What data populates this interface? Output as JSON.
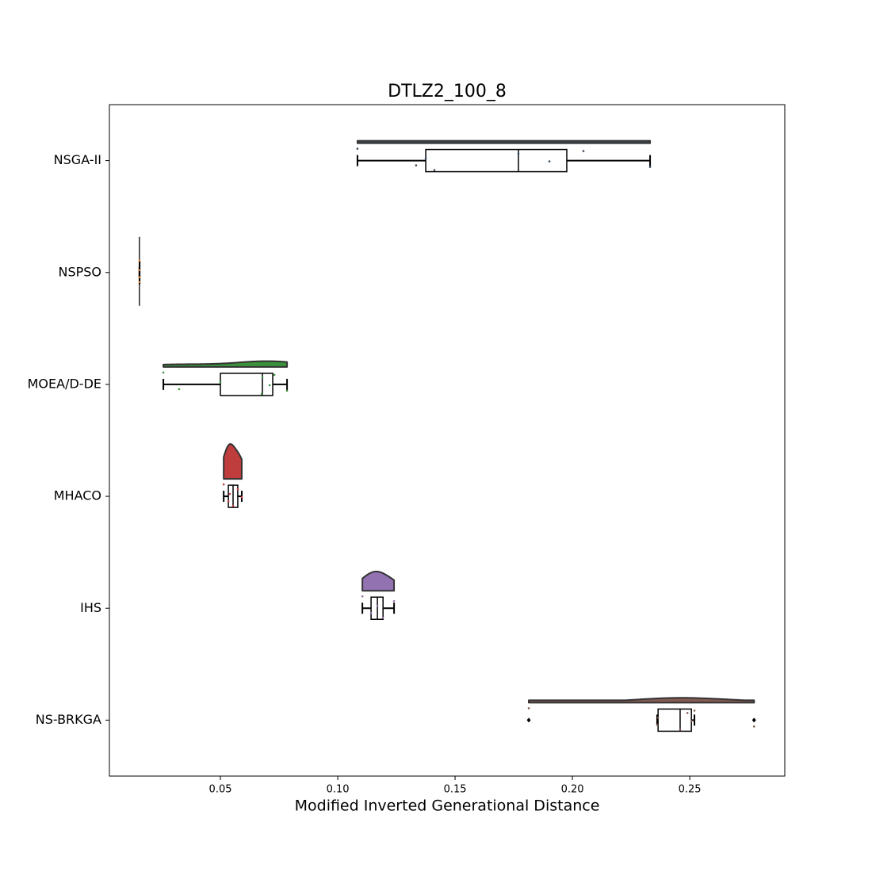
{
  "chart_data": {
    "type": "raincloud",
    "title": "DTLZ2_100_8",
    "xlabel": "Modified Inverted Generational Distance",
    "categories": [
      "NSGA-II",
      "NSPSO",
      "MOEA/D-DE",
      "MHACO",
      "IHS",
      "NS-BRKGA"
    ],
    "colors": [
      "#3a4a5c",
      "#e1812c",
      "#3a923a",
      "#c03d3e",
      "#9372b2",
      "#845b53"
    ],
    "boxes": [
      {
        "whislo": 0.1084,
        "q1": 0.1375,
        "med": 0.177,
        "q3": 0.1976,
        "whishi": 0.2331,
        "fliers": []
      },
      {
        "whislo": 0.0155,
        "q1": 0.0155,
        "med": 0.0155,
        "q3": 0.0155,
        "whishi": 0.0155,
        "fliers": []
      },
      {
        "whislo": 0.0257,
        "q1": 0.05,
        "med": 0.0679,
        "q3": 0.0723,
        "whishi": 0.0784,
        "fliers": []
      },
      {
        "whislo": 0.0514,
        "q1": 0.0534,
        "med": 0.0554,
        "q3": 0.0574,
        "whishi": 0.0591,
        "fliers": []
      },
      {
        "whislo": 0.1105,
        "q1": 0.1142,
        "med": 0.1169,
        "q3": 0.1193,
        "whishi": 0.124,
        "fliers": []
      },
      {
        "whislo": 0.2361,
        "q1": 0.2365,
        "med": 0.2459,
        "q3": 0.2507,
        "whishi": 0.252,
        "fliers": [
          0.1814,
          0.2774
        ]
      }
    ],
    "points": [
      [
        0.1084,
        0.1334,
        0.1375,
        0.1412,
        0.177,
        0.1902,
        0.2047,
        0.2331
      ],
      [
        0.0155,
        0.0155,
        0.0155,
        0.0155
      ],
      [
        0.0257,
        0.0324,
        0.05,
        0.0676,
        0.0679,
        0.071,
        0.073,
        0.0784
      ],
      [
        0.0514,
        0.0534,
        0.054,
        0.0554,
        0.0574,
        0.0591
      ],
      [
        0.1105,
        0.1142,
        0.1169,
        0.1193,
        0.124
      ],
      [
        0.1814,
        0.2361,
        0.2365,
        0.2459,
        0.249,
        0.2507,
        0.252,
        0.2774
      ]
    ],
    "xlim": [
      0.0027,
      0.2905
    ],
    "xticks": [
      0.05,
      {
        "value": 0.1,
        "label": "0.10"
      },
      0.15,
      {
        "value": 0.2,
        "label": "0.20"
      },
      0.25
    ]
  }
}
